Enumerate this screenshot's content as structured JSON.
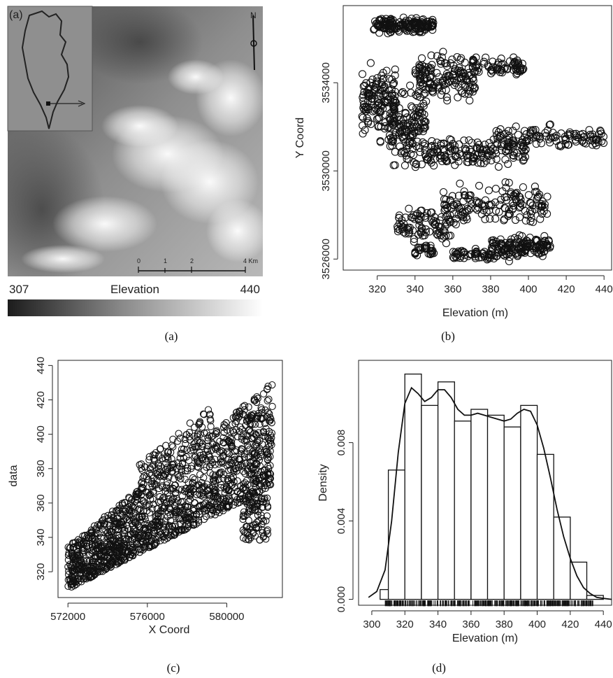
{
  "panel_a": {
    "corner_label": "(a)",
    "legend": {
      "min": "307",
      "max": "440",
      "title": "Elevation"
    },
    "scale_bar": {
      "ticks": [
        "0",
        "1",
        "2",
        "4 Km"
      ]
    },
    "north_label": "N"
  },
  "captions": [
    "(a)",
    "(b)",
    "(c)",
    "(d)"
  ],
  "chart_data": [
    {
      "id": "b",
      "type": "scatter",
      "xlabel": "Elevation (m)",
      "ylabel": "Y Coord",
      "xlim": [
        302,
        444
      ],
      "ylim": [
        3525500,
        3537500
      ],
      "xticks": [
        320,
        340,
        360,
        380,
        400,
        420,
        440
      ],
      "yticks": [
        3526000,
        3530000,
        3534000
      ],
      "note": "dense scatter of elevation vs northing, approx. 320–440 m, 3525900–3537200"
    },
    {
      "id": "c",
      "type": "scatter",
      "xlabel": "X Coord",
      "ylabel": "data",
      "xlim": [
        571500,
        582800
      ],
      "ylim": [
        305,
        443
      ],
      "xticks": [
        572000,
        576000,
        580000
      ],
      "yticks": [
        320,
        340,
        360,
        380,
        400,
        420,
        440
      ],
      "note": "dense scatter of easting vs elevation, rising trend from ~310 to ~435"
    },
    {
      "id": "d",
      "type": "bar",
      "subtype": "histogram_with_density",
      "xlabel": "Elevation (m)",
      "ylabel": "Density",
      "xlim": [
        292,
        445
      ],
      "ylim": [
        -0.0003,
        0.0122
      ],
      "xticks": [
        300,
        320,
        340,
        360,
        380,
        400,
        420,
        440
      ],
      "yticks": [
        0.0,
        0.004,
        0.008
      ],
      "ytick_labels": [
        "0.000",
        "0.004",
        "0.008"
      ],
      "bin_edges": [
        305,
        310,
        320,
        330,
        340,
        350,
        360,
        370,
        380,
        390,
        400,
        410,
        420,
        430,
        440
      ],
      "values": [
        0.0005,
        0.0066,
        0.0115,
        0.0099,
        0.0111,
        0.0091,
        0.0097,
        0.0094,
        0.0088,
        0.0099,
        0.0074,
        0.0042,
        0.0019,
        0.0002
      ],
      "density_curve": {
        "x": [
          298,
          303,
          308,
          312,
          316,
          320,
          324,
          328,
          332,
          336,
          340,
          344,
          348,
          352,
          356,
          360,
          364,
          368,
          372,
          376,
          380,
          384,
          388,
          392,
          396,
          400,
          404,
          408,
          412,
          416,
          420,
          424,
          428,
          432,
          436,
          440,
          445
        ],
        "y": [
          0.0001,
          0.0004,
          0.0015,
          0.004,
          0.0075,
          0.01,
          0.0108,
          0.0105,
          0.0101,
          0.0103,
          0.0107,
          0.0107,
          0.0103,
          0.0097,
          0.0094,
          0.0094,
          0.0095,
          0.0094,
          0.0093,
          0.0092,
          0.0091,
          0.0092,
          0.0095,
          0.0097,
          0.0096,
          0.0089,
          0.0077,
          0.0062,
          0.0046,
          0.0032,
          0.0021,
          0.0012,
          0.0006,
          0.0003,
          0.0001,
          5e-05,
          0.0
        ]
      }
    }
  ]
}
